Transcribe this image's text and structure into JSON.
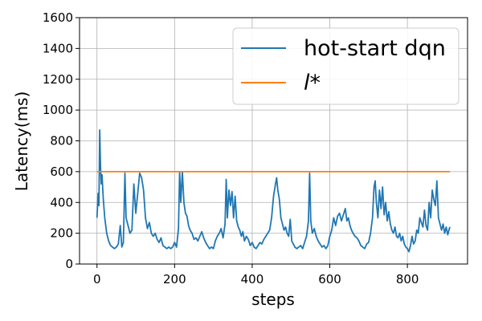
{
  "chart_data": {
    "type": "line",
    "xlabel": "steps",
    "ylabel": "Latency(ms)",
    "xlim": [
      -45,
      955
    ],
    "ylim": [
      0,
      1600
    ],
    "x_ticks": [
      0,
      200,
      400,
      600,
      800
    ],
    "y_ticks": [
      0,
      200,
      400,
      600,
      800,
      1000,
      1200,
      1400,
      1600
    ],
    "grid": true,
    "legend_position": "top-right",
    "series": [
      {
        "name": "hot-start dqn",
        "color": "#1f77b4",
        "points": [
          [
            0,
            300
          ],
          [
            3,
            460
          ],
          [
            5,
            380
          ],
          [
            7,
            870
          ],
          [
            9,
            640
          ],
          [
            11,
            520
          ],
          [
            13,
            580
          ],
          [
            16,
            430
          ],
          [
            20,
            300
          ],
          [
            25,
            200
          ],
          [
            30,
            150
          ],
          [
            35,
            120
          ],
          [
            40,
            110
          ],
          [
            45,
            100
          ],
          [
            50,
            110
          ],
          [
            55,
            130
          ],
          [
            60,
            250
          ],
          [
            64,
            110
          ],
          [
            68,
            140
          ],
          [
            72,
            590
          ],
          [
            75,
            300
          ],
          [
            80,
            250
          ],
          [
            85,
            200
          ],
          [
            90,
            220
          ],
          [
            95,
            520
          ],
          [
            100,
            330
          ],
          [
            105,
            460
          ],
          [
            110,
            590
          ],
          [
            115,
            560
          ],
          [
            120,
            480
          ],
          [
            125,
            300
          ],
          [
            130,
            230
          ],
          [
            135,
            270
          ],
          [
            140,
            200
          ],
          [
            145,
            180
          ],
          [
            150,
            200
          ],
          [
            155,
            160
          ],
          [
            160,
            140
          ],
          [
            165,
            170
          ],
          [
            170,
            120
          ],
          [
            175,
            110
          ],
          [
            180,
            100
          ],
          [
            185,
            110
          ],
          [
            190,
            100
          ],
          [
            195,
            110
          ],
          [
            200,
            140
          ],
          [
            205,
            110
          ],
          [
            210,
            230
          ],
          [
            213,
            600
          ],
          [
            216,
            400
          ],
          [
            220,
            600
          ],
          [
            224,
            400
          ],
          [
            228,
            330
          ],
          [
            232,
            310
          ],
          [
            236,
            250
          ],
          [
            240,
            220
          ],
          [
            245,
            200
          ],
          [
            250,
            160
          ],
          [
            255,
            170
          ],
          [
            260,
            150
          ],
          [
            265,
            180
          ],
          [
            270,
            210
          ],
          [
            275,
            170
          ],
          [
            280,
            140
          ],
          [
            285,
            120
          ],
          [
            290,
            100
          ],
          [
            295,
            110
          ],
          [
            300,
            100
          ],
          [
            305,
            150
          ],
          [
            310,
            180
          ],
          [
            315,
            200
          ],
          [
            320,
            230
          ],
          [
            325,
            170
          ],
          [
            330,
            260
          ],
          [
            333,
            550
          ],
          [
            336,
            300
          ],
          [
            340,
            480
          ],
          [
            344,
            380
          ],
          [
            348,
            470
          ],
          [
            352,
            300
          ],
          [
            356,
            440
          ],
          [
            360,
            280
          ],
          [
            364,
            240
          ],
          [
            368,
            220
          ],
          [
            372,
            180
          ],
          [
            376,
            210
          ],
          [
            380,
            150
          ],
          [
            385,
            180
          ],
          [
            390,
            160
          ],
          [
            395,
            120
          ],
          [
            400,
            140
          ],
          [
            405,
            110
          ],
          [
            410,
            100
          ],
          [
            415,
            120
          ],
          [
            420,
            140
          ],
          [
            425,
            130
          ],
          [
            430,
            160
          ],
          [
            435,
            180
          ],
          [
            440,
            200
          ],
          [
            445,
            220
          ],
          [
            450,
            300
          ],
          [
            455,
            440
          ],
          [
            460,
            520
          ],
          [
            463,
            560
          ],
          [
            466,
            480
          ],
          [
            470,
            420
          ],
          [
            474,
            300
          ],
          [
            478,
            260
          ],
          [
            482,
            220
          ],
          [
            486,
            240
          ],
          [
            490,
            200
          ],
          [
            494,
            180
          ],
          [
            498,
            290
          ],
          [
            502,
            150
          ],
          [
            506,
            130
          ],
          [
            510,
            110
          ],
          [
            515,
            100
          ],
          [
            520,
            110
          ],
          [
            525,
            120
          ],
          [
            530,
            100
          ],
          [
            535,
            140
          ],
          [
            540,
            180
          ],
          [
            545,
            280
          ],
          [
            548,
            590
          ],
          [
            551,
            280
          ],
          [
            555,
            200
          ],
          [
            560,
            230
          ],
          [
            565,
            180
          ],
          [
            570,
            150
          ],
          [
            575,
            130
          ],
          [
            580,
            110
          ],
          [
            585,
            120
          ],
          [
            590,
            100
          ],
          [
            595,
            120
          ],
          [
            600,
            180
          ],
          [
            605,
            220
          ],
          [
            610,
            300
          ],
          [
            615,
            250
          ],
          [
            620,
            310
          ],
          [
            625,
            330
          ],
          [
            630,
            280
          ],
          [
            635,
            320
          ],
          [
            640,
            360
          ],
          [
            644,
            280
          ],
          [
            648,
            300
          ],
          [
            652,
            250
          ],
          [
            656,
            220
          ],
          [
            660,
            200
          ],
          [
            665,
            180
          ],
          [
            670,
            170
          ],
          [
            675,
            150
          ],
          [
            680,
            120
          ],
          [
            685,
            110
          ],
          [
            690,
            100
          ],
          [
            695,
            130
          ],
          [
            700,
            140
          ],
          [
            705,
            200
          ],
          [
            710,
            300
          ],
          [
            714,
            500
          ],
          [
            717,
            540
          ],
          [
            720,
            400
          ],
          [
            724,
            300
          ],
          [
            728,
            480
          ],
          [
            732,
            360
          ],
          [
            736,
            500
          ],
          [
            740,
            320
          ],
          [
            744,
            400
          ],
          [
            748,
            280
          ],
          [
            752,
            340
          ],
          [
            756,
            260
          ],
          [
            760,
            220
          ],
          [
            764,
            200
          ],
          [
            768,
            240
          ],
          [
            772,
            180
          ],
          [
            776,
            170
          ],
          [
            780,
            200
          ],
          [
            784,
            150
          ],
          [
            788,
            180
          ],
          [
            792,
            130
          ],
          [
            796,
            110
          ],
          [
            800,
            100
          ],
          [
            804,
            80
          ],
          [
            808,
            120
          ],
          [
            812,
            180
          ],
          [
            816,
            130
          ],
          [
            820,
            150
          ],
          [
            824,
            220
          ],
          [
            828,
            200
          ],
          [
            832,
            300
          ],
          [
            836,
            270
          ],
          [
            840,
            240
          ],
          [
            844,
            350
          ],
          [
            848,
            250
          ],
          [
            852,
            220
          ],
          [
            856,
            400
          ],
          [
            860,
            300
          ],
          [
            864,
            480
          ],
          [
            868,
            420
          ],
          [
            872,
            380
          ],
          [
            876,
            540
          ],
          [
            880,
            300
          ],
          [
            884,
            260
          ],
          [
            888,
            220
          ],
          [
            892,
            260
          ],
          [
            896,
            200
          ],
          [
            900,
            240
          ],
          [
            904,
            190
          ],
          [
            908,
            230
          ],
          [
            910,
            240
          ]
        ]
      },
      {
        "name": "l*",
        "color": "#ff7f0e",
        "points": [
          [
            0,
            600
          ],
          [
            910,
            600
          ]
        ]
      }
    ]
  }
}
